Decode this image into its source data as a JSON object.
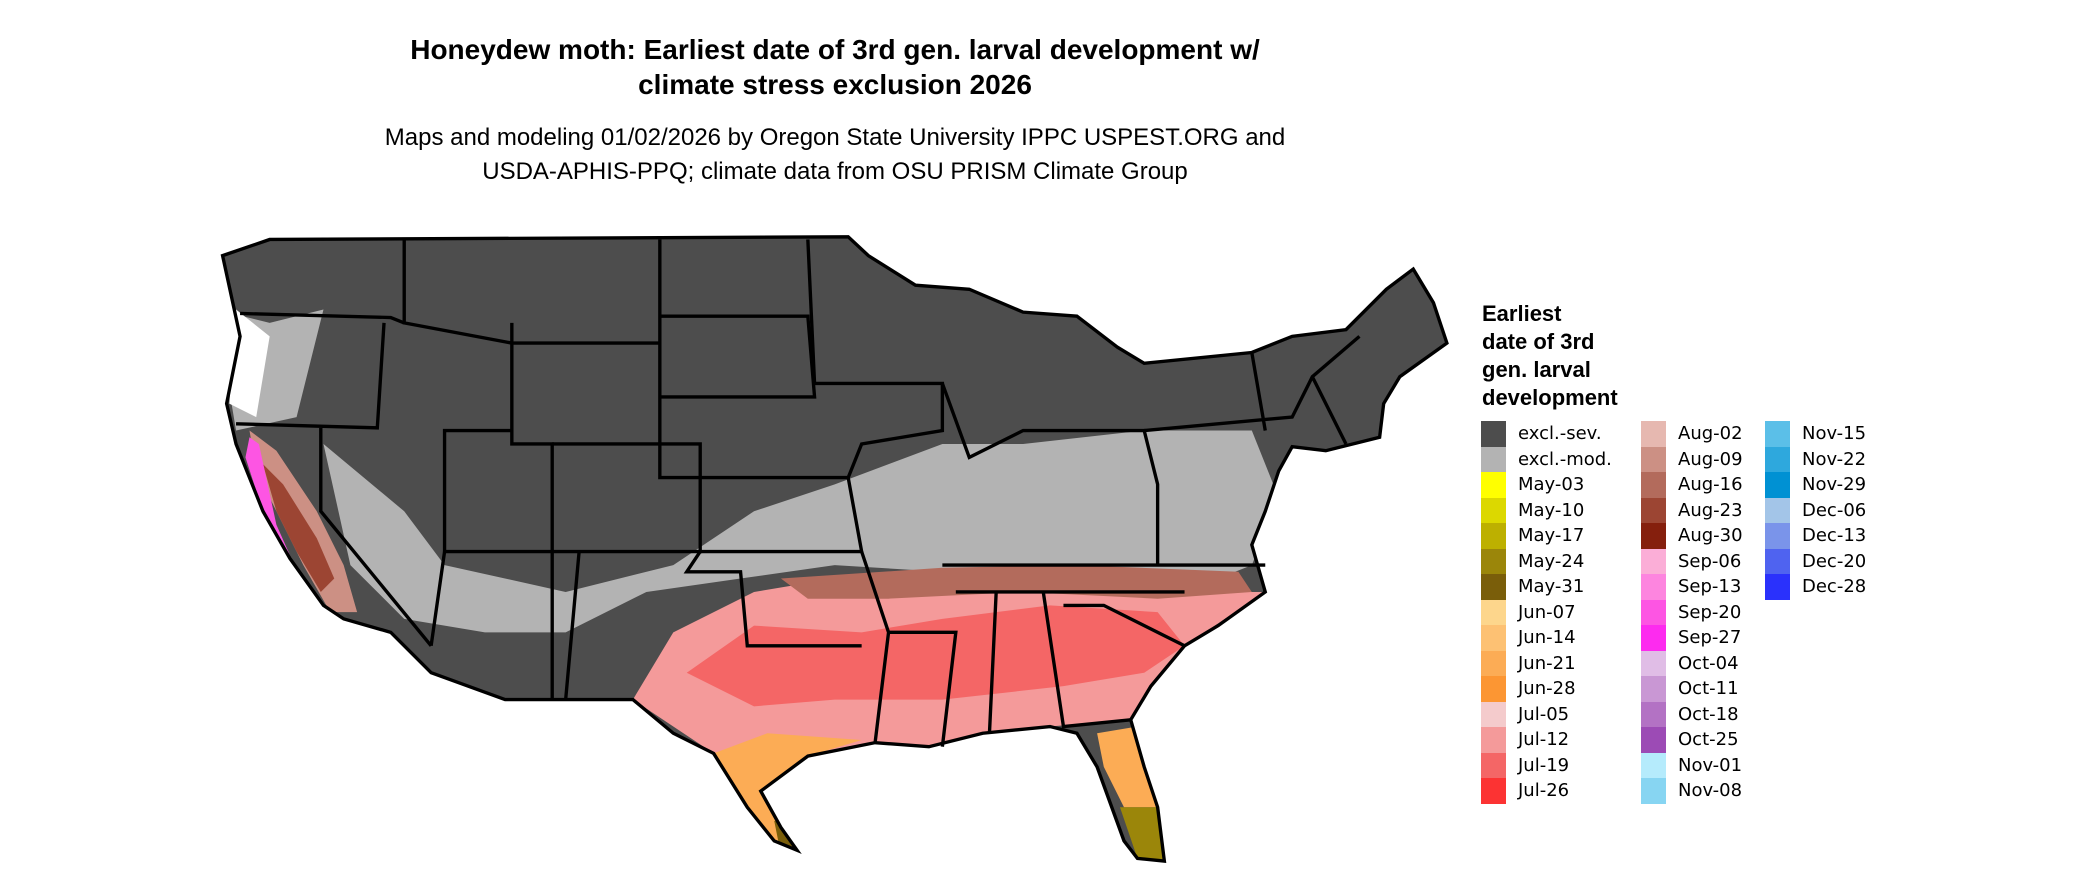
{
  "title": {
    "line1": "Honeydew moth: Earliest date of 3rd gen. larval development w/",
    "line2": "climate stress exclusion 2026"
  },
  "subtitle": {
    "line1": "Maps and modeling 01/02/2026 by Oregon State University IPPC USPEST.ORG and",
    "line2": "USDA-APHIS-PPQ; climate data from OSU PRISM Climate Group"
  },
  "map": {
    "region": "Contiguous United States",
    "boundaries": "state lines",
    "excluded_colors": {
      "severe": "#4d4d4d",
      "moderate": "#b3b3b3"
    }
  },
  "legend": {
    "title_lines": [
      "Earliest",
      "date of 3rd",
      "gen. larval",
      "development"
    ],
    "columns": [
      [
        {
          "label": "excl.-sev.",
          "color": "#4d4d4d"
        },
        {
          "label": "excl.-mod.",
          "color": "#b3b3b3"
        },
        {
          "label": "May-03",
          "color": "#ffff00"
        },
        {
          "label": "May-10",
          "color": "#dcd800"
        },
        {
          "label": "May-17",
          "color": "#bdb000"
        },
        {
          "label": "May-24",
          "color": "#9b860a"
        },
        {
          "label": "May-31",
          "color": "#7a5e0a"
        },
        {
          "label": "Jun-07",
          "color": "#fdd68c"
        },
        {
          "label": "Jun-14",
          "color": "#fdc173"
        },
        {
          "label": "Jun-21",
          "color": "#fcac55"
        },
        {
          "label": "Jun-28",
          "color": "#fc9633"
        },
        {
          "label": "Jul-05",
          "color": "#f4cbcc"
        },
        {
          "label": "Jul-12",
          "color": "#f49a9a"
        },
        {
          "label": "Jul-19",
          "color": "#f46666"
        },
        {
          "label": "Jul-26",
          "color": "#fc3333"
        }
      ],
      [
        {
          "label": "Aug-02",
          "color": "#e6b8b0"
        },
        {
          "label": "Aug-09",
          "color": "#cc9084"
        },
        {
          "label": "Aug-16",
          "color": "#b36b5c"
        },
        {
          "label": "Aug-23",
          "color": "#9c4533"
        },
        {
          "label": "Aug-30",
          "color": "#851f0d"
        },
        {
          "label": "Sep-06",
          "color": "#fbaed7"
        },
        {
          "label": "Sep-13",
          "color": "#fd85df"
        },
        {
          "label": "Sep-20",
          "color": "#fd55e3"
        },
        {
          "label": "Sep-27",
          "color": "#fd2bef"
        },
        {
          "label": "Oct-04",
          "color": "#e0bde6"
        },
        {
          "label": "Oct-11",
          "color": "#c997d4"
        },
        {
          "label": "Oct-18",
          "color": "#b372c4"
        },
        {
          "label": "Oct-25",
          "color": "#9c4bb5"
        },
        {
          "label": "Nov-01",
          "color": "#b5ebfc"
        },
        {
          "label": "Nov-08",
          "color": "#87d5f2"
        }
      ],
      [
        {
          "label": "Nov-15",
          "color": "#5bbfe8"
        },
        {
          "label": "Nov-22",
          "color": "#2ea8dd"
        },
        {
          "label": "Nov-29",
          "color": "#0091d3"
        },
        {
          "label": "Dec-06",
          "color": "#a3c5e8"
        },
        {
          "label": "Dec-13",
          "color": "#7a94ea"
        },
        {
          "label": "Dec-20",
          "color": "#4f63f0"
        },
        {
          "label": "Dec-28",
          "color": "#2a31fc"
        }
      ]
    ]
  }
}
